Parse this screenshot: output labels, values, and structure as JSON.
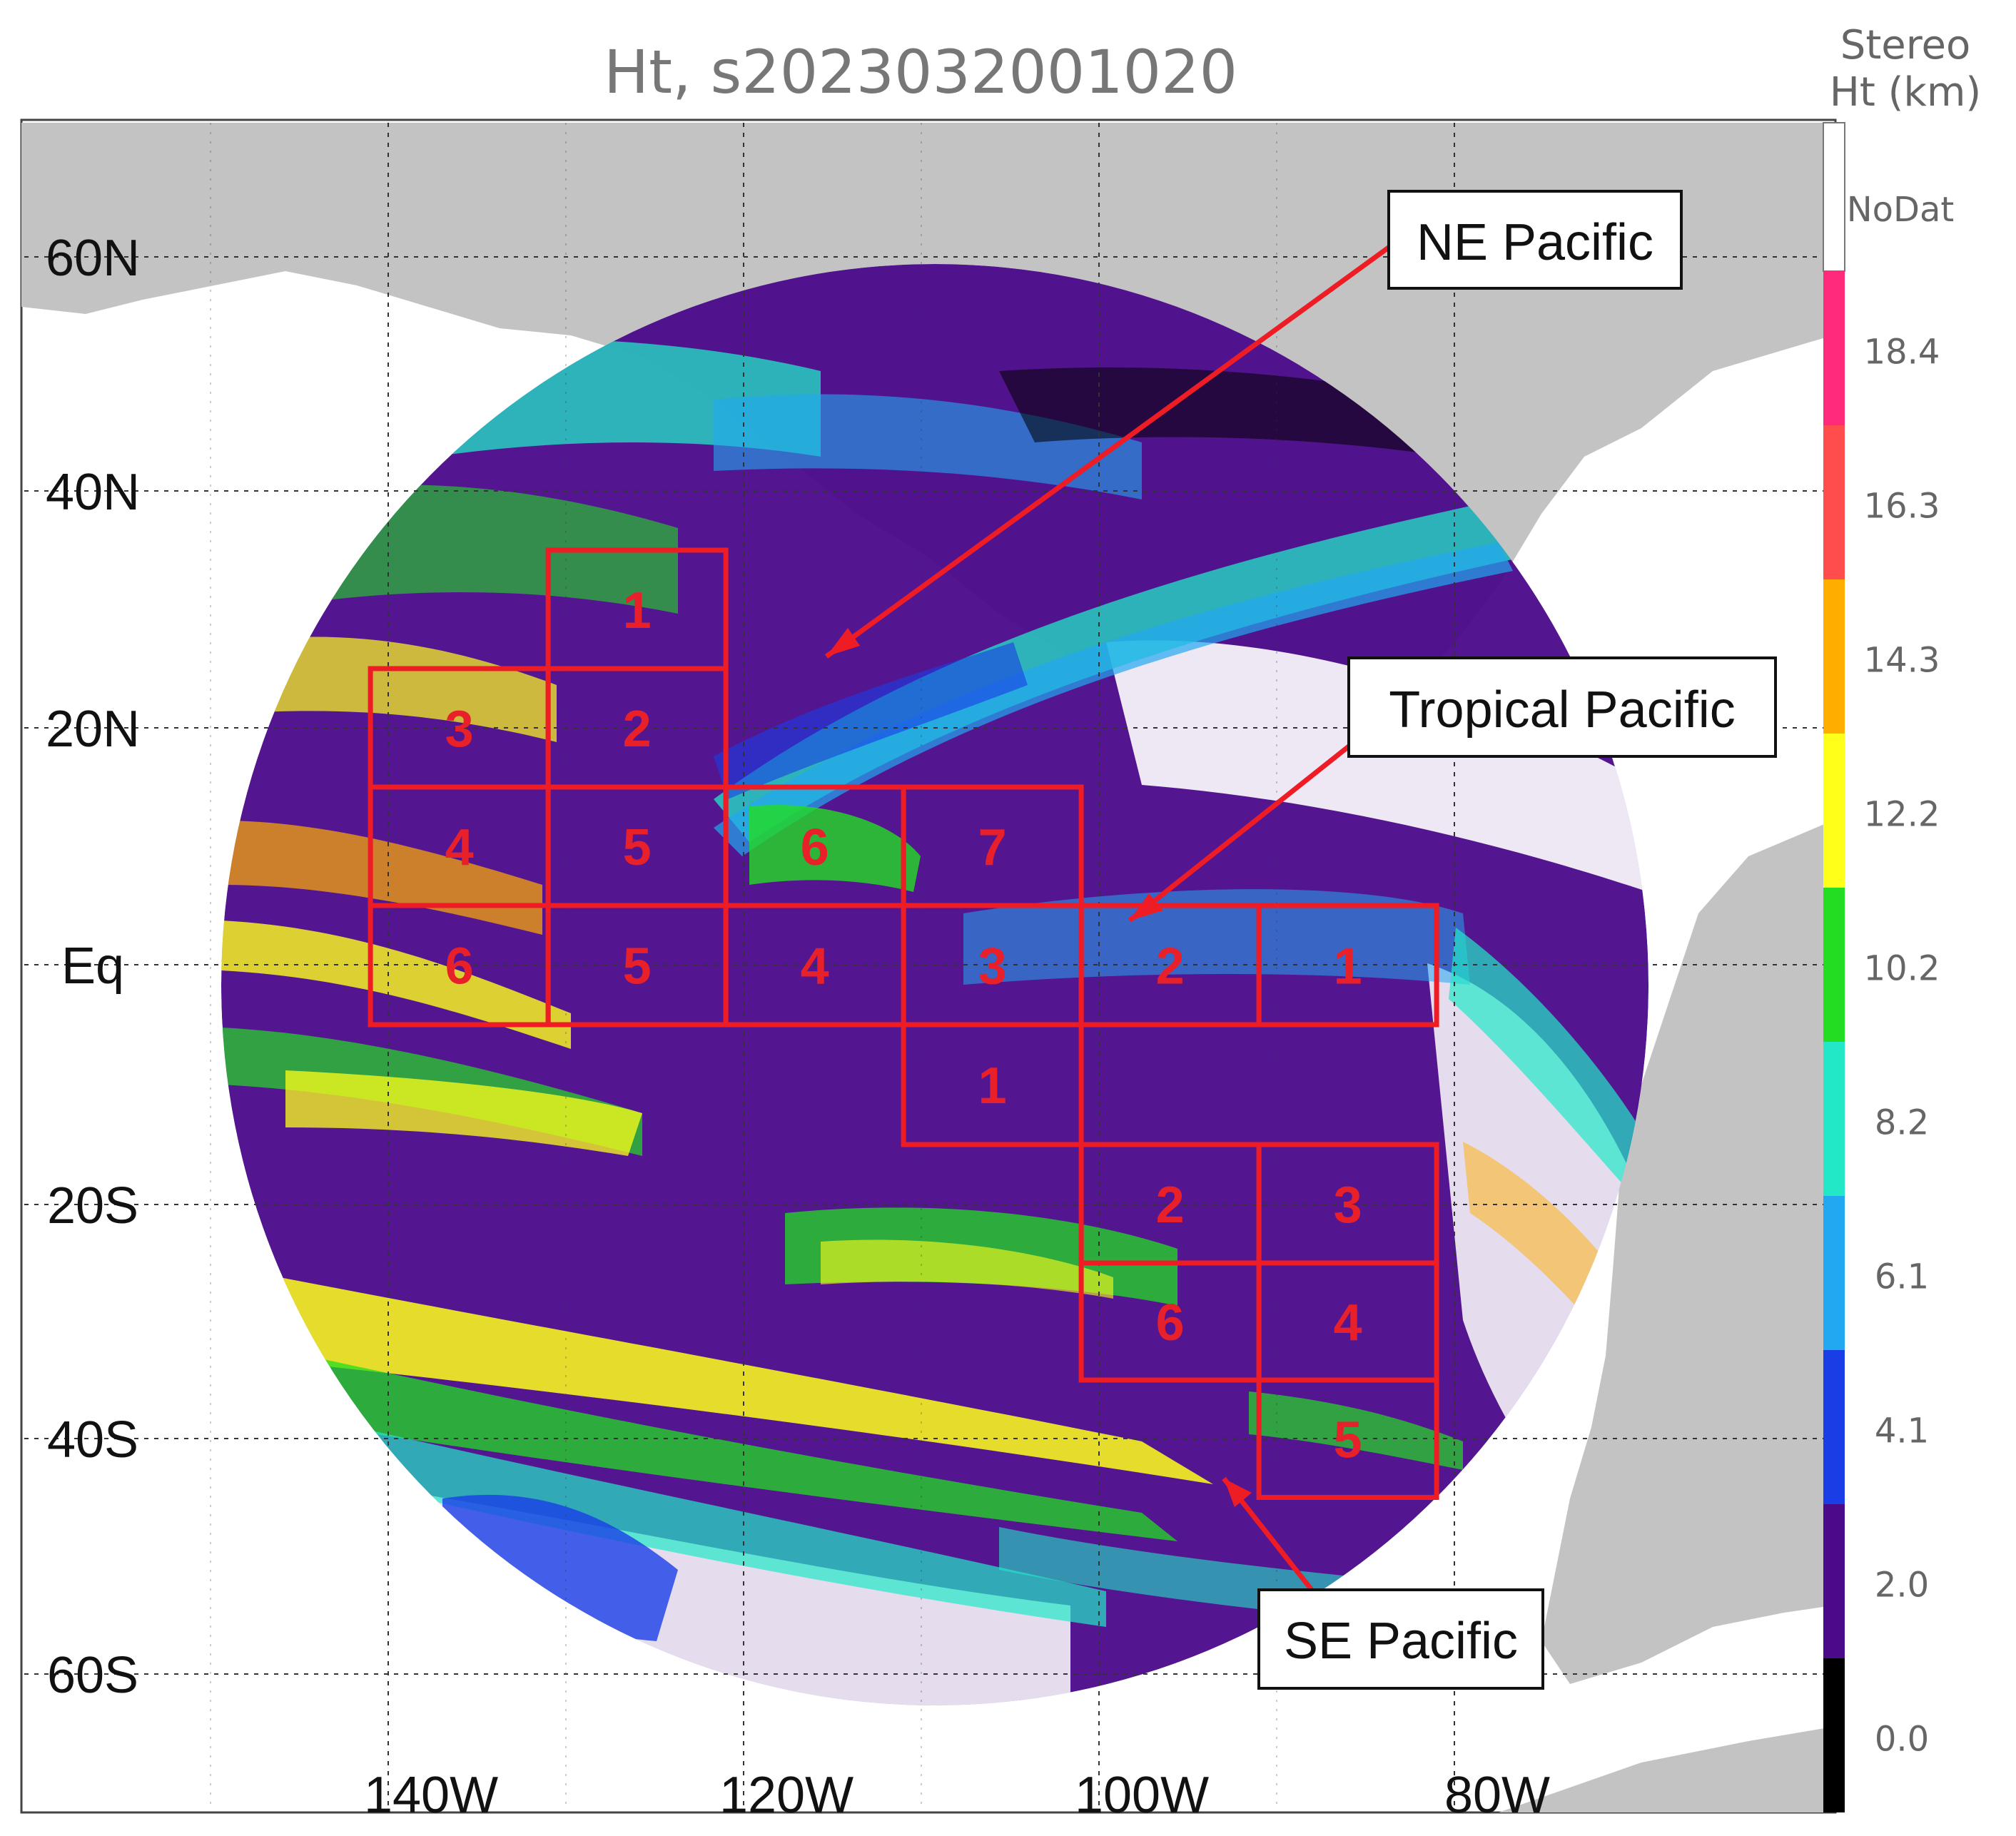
{
  "title": "Ht, s2023032001020",
  "colorbar": {
    "title_line1": "Stereo",
    "title_line2": "Ht (km)",
    "nodata_label": "NoDat",
    "nodata_color": "#ffffff",
    "levels": [
      {
        "label": "18.4",
        "color": "#ff2a7a"
      },
      {
        "label": "16.3",
        "color": "#ff4d4d"
      },
      {
        "label": "14.3",
        "color": "#ffae00"
      },
      {
        "label": "12.2",
        "color": "#ffff1a"
      },
      {
        "label": "10.2",
        "color": "#22dd22"
      },
      {
        "label": "8.2",
        "color": "#22e8c8"
      },
      {
        "label": "6.1",
        "color": "#22a8f0"
      },
      {
        "label": "4.1",
        "color": "#1a3ee6"
      },
      {
        "label": "2.0",
        "color": "#4b0a8a"
      },
      {
        "label": "0.0",
        "color": "#000000"
      }
    ]
  },
  "latitude_labels": [
    {
      "label": "60N",
      "lat": 60
    },
    {
      "label": "40N",
      "lat": 40
    },
    {
      "label": "20N",
      "lat": 20
    },
    {
      "label": "Eq",
      "lat": 0
    },
    {
      "label": "20S",
      "lat": -20
    },
    {
      "label": "40S",
      "lat": -40
    },
    {
      "label": "60S",
      "lat": -60
    }
  ],
  "longitude_labels": [
    {
      "label": "140W",
      "lon": -140
    },
    {
      "label": "120W",
      "lon": -120
    },
    {
      "label": "100W",
      "lon": -100
    },
    {
      "label": "80W",
      "lon": -80
    }
  ],
  "regions": [
    {
      "name": "NE Pacific",
      "label": "NE Pacific",
      "boxes": [
        {
          "num": "1",
          "lon": [
            -131,
            -121
          ],
          "lat": [
            25,
            35
          ]
        },
        {
          "num": "2",
          "lon": [
            -131,
            -121
          ],
          "lat": [
            15,
            25
          ]
        },
        {
          "num": "3",
          "lon": [
            -141,
            -131
          ],
          "lat": [
            15,
            25
          ]
        },
        {
          "num": "4",
          "lon": [
            -141,
            -131
          ],
          "lat": [
            5,
            15
          ]
        },
        {
          "num": "5",
          "lon": [
            -131,
            -121
          ],
          "lat": [
            5,
            15
          ]
        },
        {
          "num": "6",
          "lon": [
            -121,
            -111
          ],
          "lat": [
            5,
            15
          ]
        },
        {
          "num": "7",
          "lon": [
            -111,
            -101
          ],
          "lat": [
            5,
            15
          ]
        }
      ]
    },
    {
      "name": "Tropical Pacific",
      "label": "Tropical Pacific",
      "boxes": [
        {
          "num": "1",
          "lon": [
            -91,
            -81
          ],
          "lat": [
            -5,
            5
          ]
        },
        {
          "num": "2",
          "lon": [
            -101,
            -91
          ],
          "lat": [
            -5,
            5
          ]
        },
        {
          "num": "3",
          "lon": [
            -111,
            -101
          ],
          "lat": [
            -5,
            5
          ]
        },
        {
          "num": "4",
          "lon": [
            -121,
            -111
          ],
          "lat": [
            -5,
            5
          ]
        },
        {
          "num": "5",
          "lon": [
            -131,
            -121
          ],
          "lat": [
            -5,
            5
          ]
        },
        {
          "num": "6",
          "lon": [
            -141,
            -131
          ],
          "lat": [
            -5,
            5
          ]
        }
      ]
    },
    {
      "name": "SE Pacific",
      "label": "SE Pacific",
      "boxes": [
        {
          "num": "1",
          "lon": [
            -111,
            -101
          ],
          "lat": [
            -15,
            -5
          ]
        },
        {
          "num": "2",
          "lon": [
            -101,
            -91
          ],
          "lat": [
            -25,
            -15
          ]
        },
        {
          "num": "3",
          "lon": [
            -91,
            -81
          ],
          "lat": [
            -25,
            -15
          ]
        },
        {
          "num": "4",
          "lon": [
            -91,
            -81
          ],
          "lat": [
            -35,
            -25
          ]
        },
        {
          "num": "5",
          "lon": [
            -91,
            -81
          ],
          "lat": [
            -45,
            -35
          ]
        },
        {
          "num": "6",
          "lon": [
            -101,
            -91
          ],
          "lat": [
            -35,
            -25
          ]
        }
      ]
    }
  ],
  "colors": {
    "box_outline": "#ee1c24",
    "land": "#c0c0c0",
    "gridline": "#333333"
  }
}
